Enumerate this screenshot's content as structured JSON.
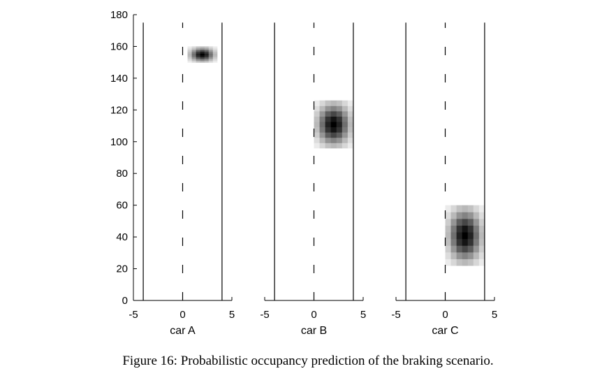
{
  "caption": "Figure 16: Probabilistic occupancy prediction of the braking scenario.",
  "chart_data": [
    {
      "type": "heatmap",
      "xlabel": "car A",
      "xlim": [
        -5,
        5
      ],
      "ylim": [
        0,
        180
      ],
      "xticks": [
        "-5",
        "0",
        "5"
      ],
      "yticks": [
        "0",
        "20",
        "40",
        "60",
        "80",
        "100",
        "120",
        "140",
        "160",
        "180"
      ],
      "lane_borders_x": [
        -4,
        4
      ],
      "lane_center_x": 0,
      "road_y_range": [
        0,
        175
      ],
      "occupancy": {
        "center_x": 2,
        "center_y": 155,
        "half_width_x": 1.5,
        "half_height_y": 5
      }
    },
    {
      "type": "heatmap",
      "xlabel": "car B",
      "xlim": [
        -5,
        5
      ],
      "ylim": [
        0,
        180
      ],
      "xticks": [
        "-5",
        "0",
        "5"
      ],
      "lane_borders_x": [
        -4,
        4
      ],
      "lane_center_x": 0,
      "road_y_range": [
        0,
        175
      ],
      "occupancy": {
        "center_x": 2,
        "center_y": 111,
        "half_width_x": 2,
        "half_height_y": 15
      }
    },
    {
      "type": "heatmap",
      "xlabel": "car C",
      "xlim": [
        -5,
        5
      ],
      "ylim": [
        0,
        180
      ],
      "xticks": [
        "-5",
        "0",
        "5"
      ],
      "lane_borders_x": [
        -4,
        4
      ],
      "lane_center_x": 0,
      "road_y_range": [
        0,
        175
      ],
      "occupancy": {
        "center_x": 2,
        "center_y": 41,
        "half_width_x": 2,
        "half_height_y": 19
      }
    }
  ]
}
